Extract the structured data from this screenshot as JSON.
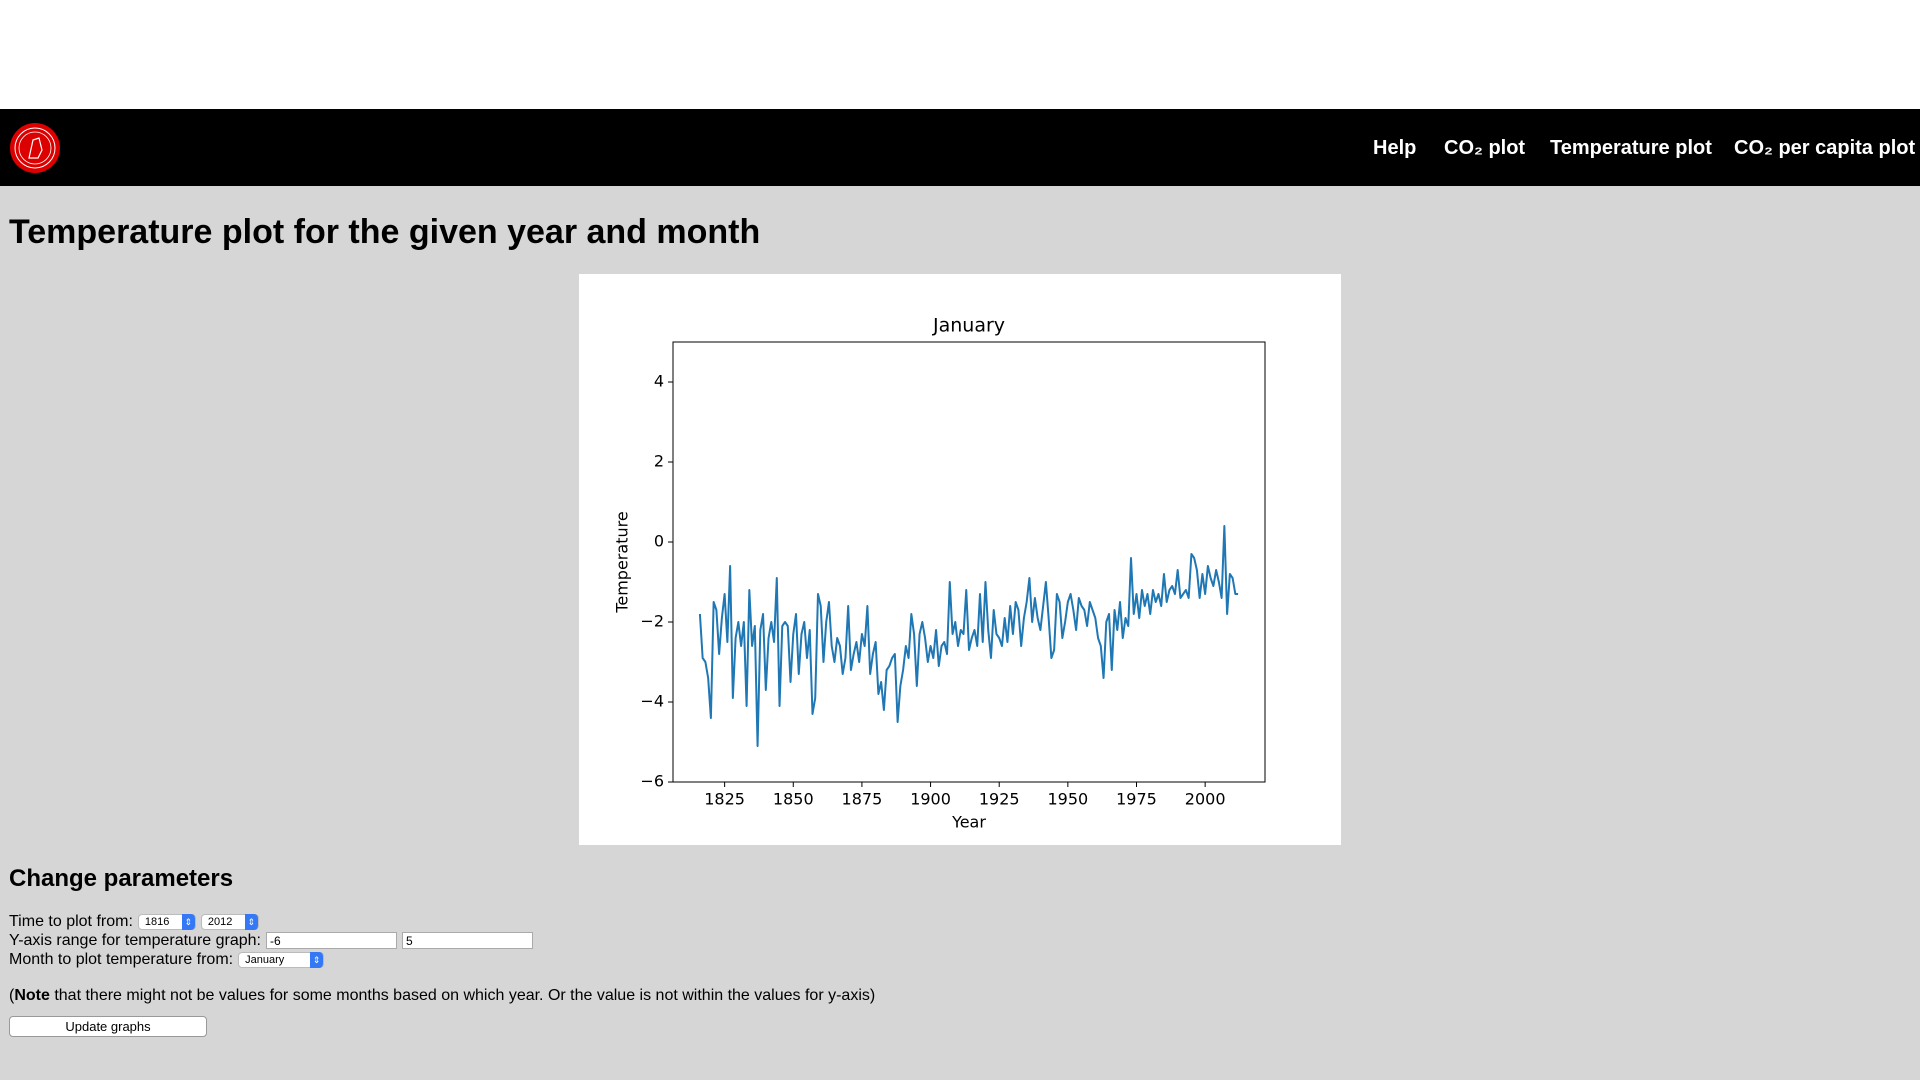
{
  "nav": {
    "links": [
      "Help",
      "CO₂ plot",
      "Temperature plot",
      "CO₂ per capita plot"
    ]
  },
  "heading": "Temperature plot for the given year and month",
  "chart_data": {
    "type": "line",
    "title": "January",
    "xlabel": "Year",
    "ylabel": "Temperature",
    "xlim": [
      1806.2,
      2021.8
    ],
    "ylim": [
      -6,
      5
    ],
    "xticks": [
      1825,
      1850,
      1875,
      1900,
      1925,
      1950,
      1975,
      2000
    ],
    "yticks": [
      {
        "value": -6,
        "label": "−6"
      },
      {
        "value": -4,
        "label": "−4"
      },
      {
        "value": -2,
        "label": "−2"
      },
      0,
      2,
      4
    ],
    "grid": false,
    "x": [
      1816,
      1817,
      1818,
      1819,
      1820,
      1821,
      1822,
      1823,
      1824,
      1825,
      1826,
      1827,
      1828,
      1829,
      1830,
      1831,
      1832,
      1833,
      1834,
      1835,
      1836,
      1837,
      1838,
      1839,
      1840,
      1841,
      1842,
      1843,
      1844,
      1845,
      1846,
      1847,
      1848,
      1849,
      1850,
      1851,
      1852,
      1853,
      1854,
      1855,
      1856,
      1857,
      1858,
      1859,
      1860,
      1861,
      1862,
      1863,
      1864,
      1865,
      1866,
      1867,
      1868,
      1869,
      1870,
      1871,
      1872,
      1873,
      1874,
      1875,
      1876,
      1877,
      1878,
      1879,
      1880,
      1881,
      1882,
      1883,
      1884,
      1885,
      1886,
      1887,
      1888,
      1889,
      1890,
      1891,
      1892,
      1893,
      1894,
      1895,
      1896,
      1897,
      1898,
      1899,
      1900,
      1901,
      1902,
      1903,
      1904,
      1905,
      1906,
      1907,
      1908,
      1909,
      1910,
      1911,
      1912,
      1913,
      1914,
      1915,
      1916,
      1917,
      1918,
      1919,
      1920,
      1921,
      1922,
      1923,
      1924,
      1925,
      1926,
      1927,
      1928,
      1929,
      1930,
      1931,
      1932,
      1933,
      1934,
      1935,
      1936,
      1937,
      1938,
      1939,
      1940,
      1941,
      1942,
      1943,
      1944,
      1945,
      1946,
      1947,
      1948,
      1949,
      1950,
      1951,
      1952,
      1953,
      1954,
      1955,
      1956,
      1957,
      1958,
      1959,
      1960,
      1961,
      1962,
      1963,
      1964,
      1965,
      1966,
      1967,
      1968,
      1969,
      1970,
      1971,
      1972,
      1973,
      1974,
      1975,
      1976,
      1977,
      1978,
      1979,
      1980,
      1981,
      1982,
      1983,
      1984,
      1985,
      1986,
      1987,
      1988,
      1989,
      1990,
      1991,
      1992,
      1993,
      1994,
      1995,
      1996,
      1997,
      1998,
      1999,
      2000,
      2001,
      2002,
      2003,
      2004,
      2005,
      2006,
      2007,
      2008,
      2009,
      2010,
      2011,
      2012
    ],
    "series": [
      {
        "color": "#1f77b4",
        "values": [
          -1.8,
          -2.9,
          -3.0,
          -3.4,
          -4.4,
          -1.5,
          -1.7,
          -2.8,
          -1.9,
          -1.3,
          -2.5,
          -0.6,
          -3.9,
          -2.4,
          -2.0,
          -2.6,
          -2.0,
          -4.1,
          -1.2,
          -2.6,
          -2.1,
          -5.1,
          -2.2,
          -1.8,
          -3.7,
          -2.4,
          -2.0,
          -2.5,
          -0.9,
          -4.1,
          -2.1,
          -2.0,
          -2.1,
          -3.5,
          -2.3,
          -1.8,
          -3.3,
          -2.3,
          -2.0,
          -2.9,
          -2.2,
          -4.3,
          -3.9,
          -1.3,
          -1.6,
          -3.0,
          -2.0,
          -1.5,
          -2.6,
          -3.0,
          -2.4,
          -2.6,
          -3.3,
          -2.9,
          -1.6,
          -3.2,
          -2.8,
          -2.5,
          -3.0,
          -2.3,
          -2.6,
          -1.6,
          -3.3,
          -2.8,
          -2.5,
          -3.8,
          -3.5,
          -4.2,
          -3.2,
          -3.1,
          -2.9,
          -2.8,
          -4.5,
          -3.6,
          -3.2,
          -2.6,
          -2.9,
          -1.8,
          -2.3,
          -3.6,
          -2.3,
          -2.0,
          -2.4,
          -3.0,
          -2.6,
          -2.9,
          -2.2,
          -3.1,
          -2.6,
          -2.5,
          -2.8,
          -1.0,
          -2.3,
          -2.0,
          -2.6,
          -2.2,
          -2.3,
          -1.2,
          -2.7,
          -2.4,
          -2.2,
          -2.6,
          -1.3,
          -2.5,
          -1.0,
          -2.2,
          -2.9,
          -1.7,
          -2.3,
          -2.4,
          -2.6,
          -1.9,
          -2.5,
          -1.6,
          -2.3,
          -1.5,
          -1.7,
          -2.6,
          -1.9,
          -1.5,
          -0.9,
          -2.0,
          -1.4,
          -1.9,
          -2.2,
          -1.6,
          -1.0,
          -1.9,
          -2.9,
          -2.7,
          -1.3,
          -1.5,
          -2.4,
          -2.0,
          -1.5,
          -1.3,
          -1.7,
          -2.2,
          -1.4,
          -1.6,
          -1.7,
          -2.1,
          -1.5,
          -1.7,
          -1.9,
          -2.4,
          -2.6,
          -3.4,
          -2.0,
          -1.8,
          -3.2,
          -1.7,
          -2.2,
          -1.5,
          -2.4,
          -1.9,
          -2.1,
          -0.4,
          -1.8,
          -1.3,
          -1.9,
          -1.2,
          -1.6,
          -1.3,
          -1.8,
          -1.2,
          -1.5,
          -1.3,
          -1.6,
          -0.8,
          -1.5,
          -1.2,
          -1.1,
          -1.3,
          -0.7,
          -1.4,
          -1.3,
          -1.2,
          -1.4,
          -0.3,
          -0.4,
          -0.7,
          -1.4,
          -0.8,
          -1.3,
          -0.6,
          -0.9,
          -1.1,
          -0.7,
          -1.0,
          -1.4,
          0.4,
          -1.8,
          -0.8,
          -0.9,
          -1.3,
          -1.3
        ]
      }
    ]
  },
  "form": {
    "title": "Change parameters",
    "time_label": "Time to plot from:",
    "time_from": "1816",
    "time_to": "2012",
    "yrange_label": "Y-axis range for temperature graph:",
    "ymin": "-6",
    "ymax": "5",
    "month_label": "Month to plot temperature from:",
    "month": "January",
    "note_open": "(",
    "note_bold": "Note",
    "note_rest": " that there might not be values for some months based on which year. Or the value is not within the values for y-axis)",
    "button": "Update graphs"
  }
}
